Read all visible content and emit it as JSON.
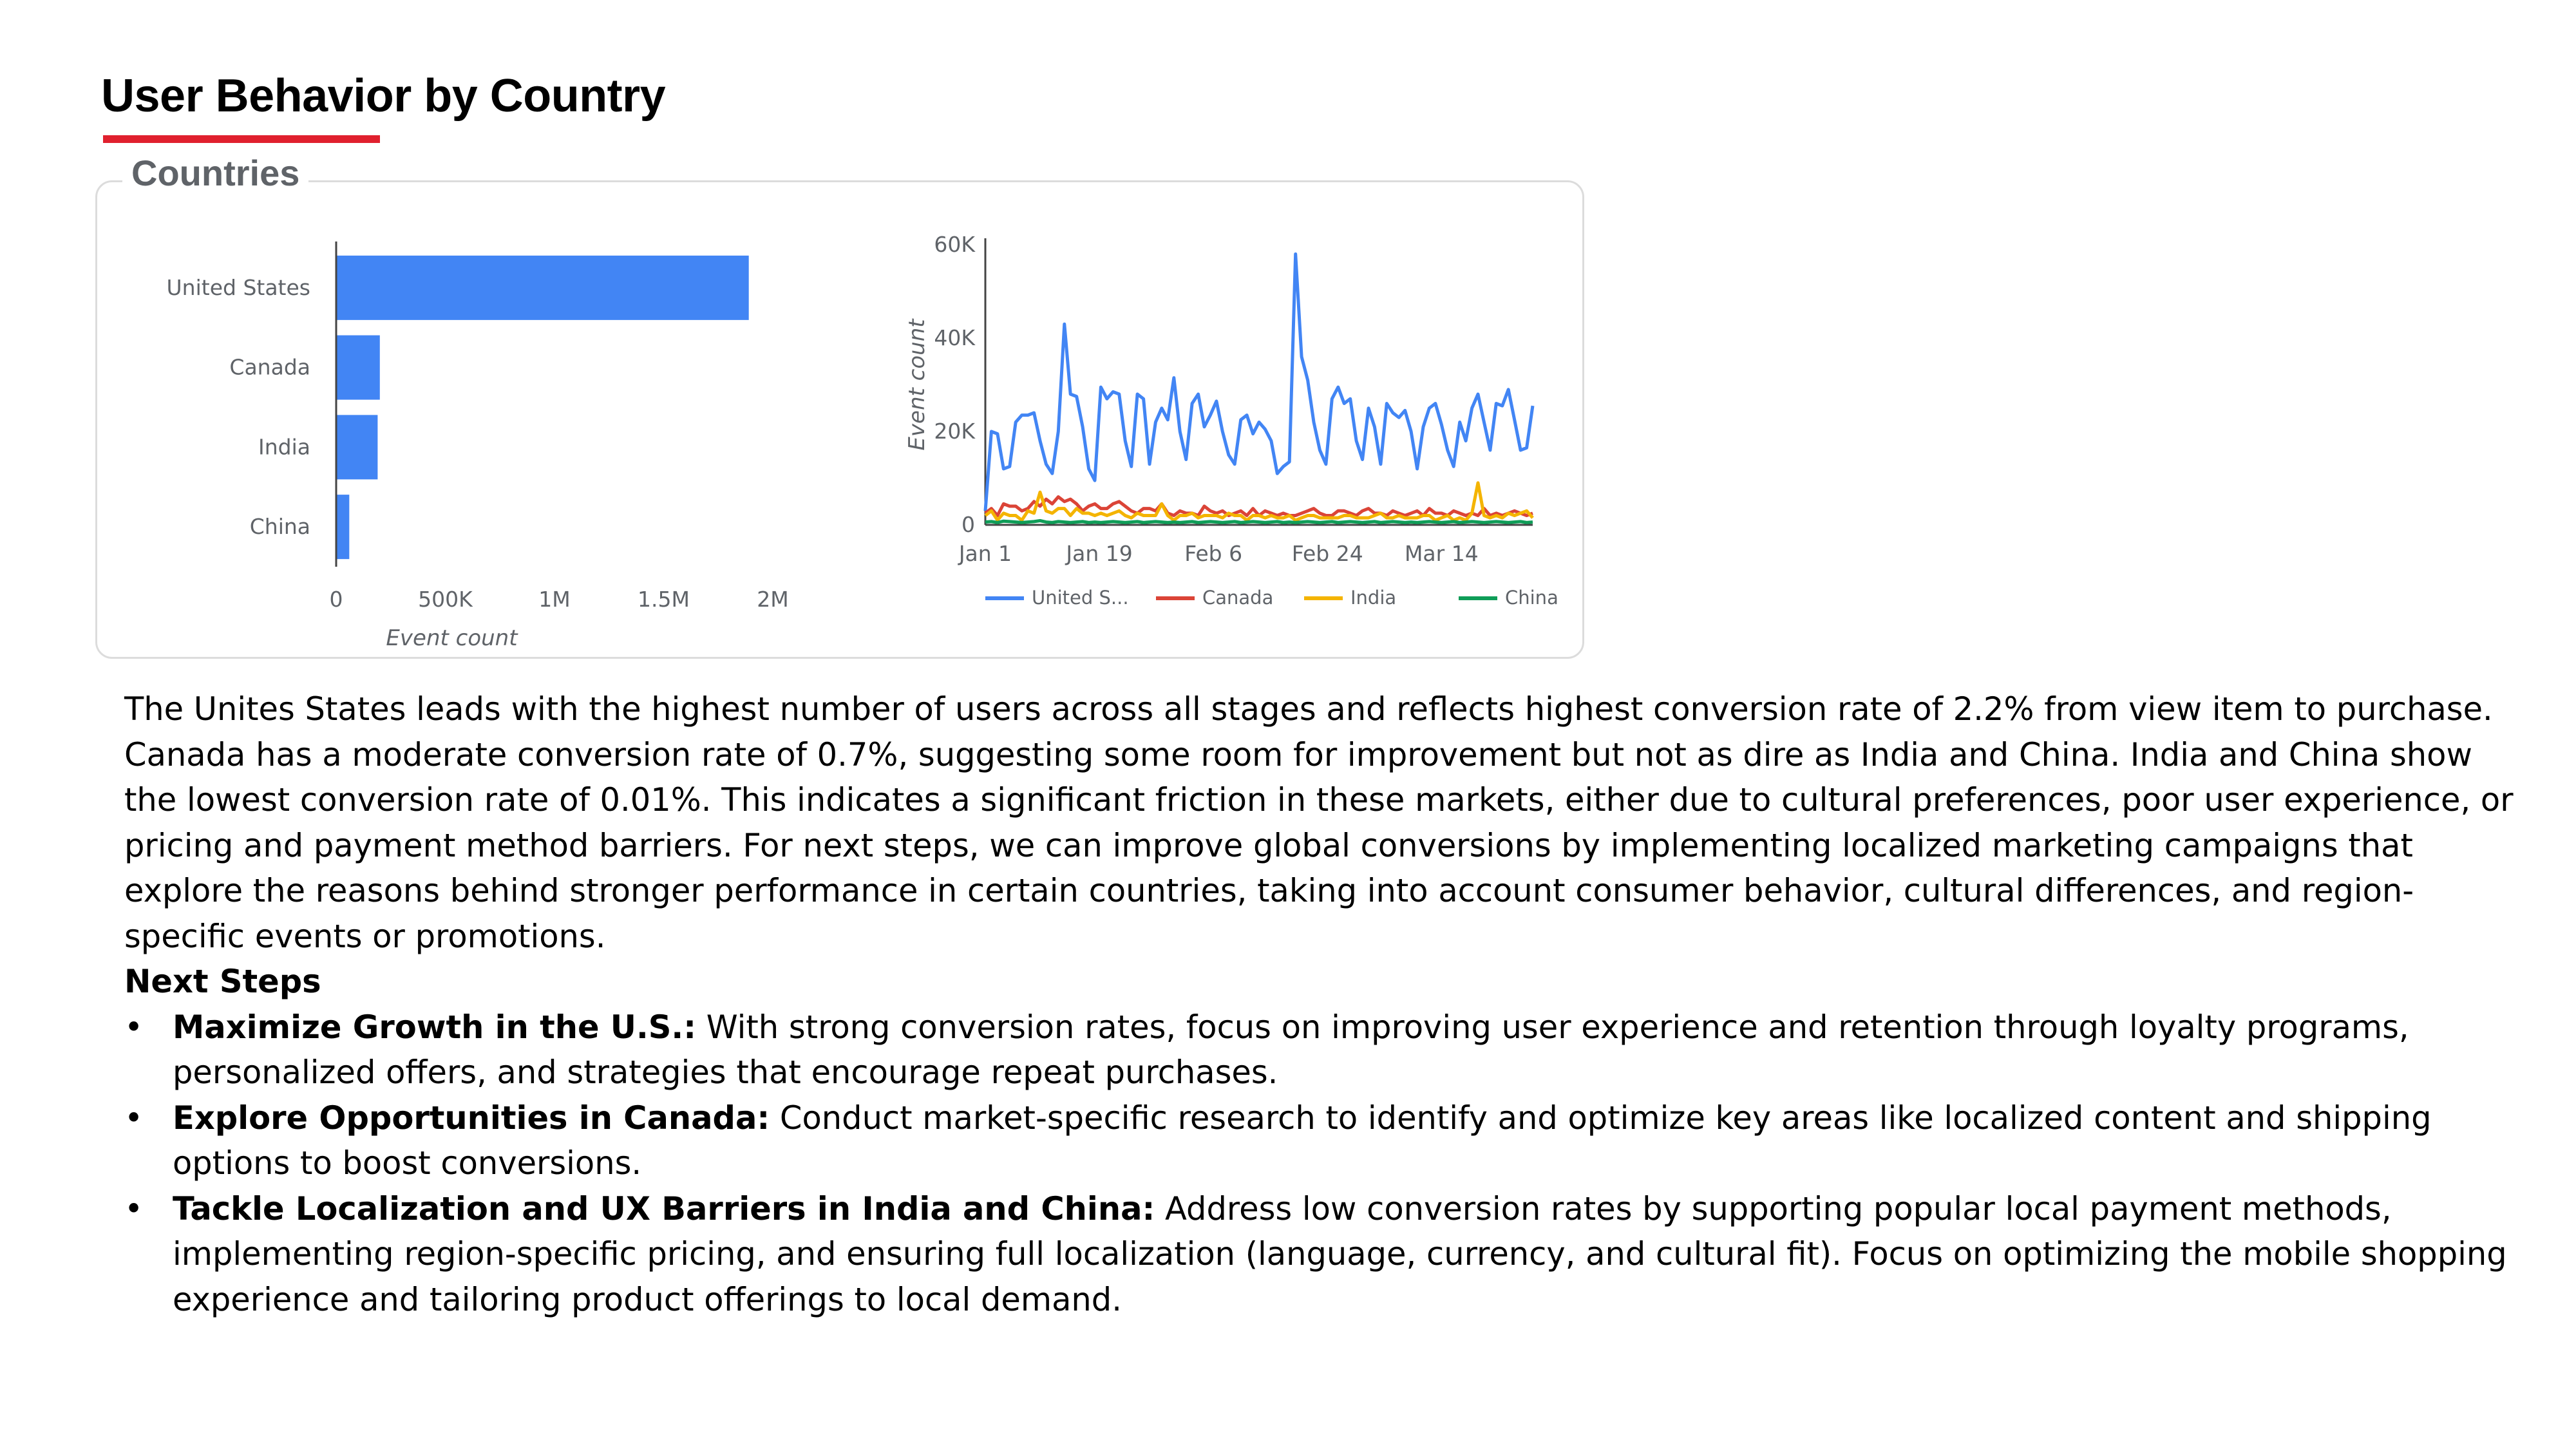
{
  "title": "User Behavior by Country",
  "card_title": "Countries",
  "chart_data": [
    {
      "type": "bar",
      "orientation": "horizontal",
      "categories": [
        "United States",
        "Canada",
        "India",
        "China"
      ],
      "values": [
        1890000,
        200000,
        190000,
        60000
      ],
      "xlabel": "Event count",
      "xticks": [
        "0",
        "500K",
        "1M",
        "1.5M",
        "2M"
      ],
      "xlim": [
        0,
        2000000
      ],
      "color": "#4285f4"
    },
    {
      "type": "line",
      "ylabel": "Event count",
      "yticks": [
        "0",
        "20K",
        "40K",
        "60K"
      ],
      "ylim": [
        0,
        60000
      ],
      "xticks": [
        "Jan 1",
        "Jan 19",
        "Feb 6",
        "Feb 24",
        "Mar 14"
      ],
      "series": [
        {
          "name": "United S...",
          "color": "#4285f4",
          "values": [
            3000,
            20000,
            19500,
            12000,
            12500,
            22000,
            23500,
            23500,
            24000,
            18000,
            13000,
            11000,
            20000,
            43000,
            28000,
            27500,
            21000,
            12000,
            9500,
            29500,
            27000,
            28500,
            28000,
            18000,
            12500,
            28000,
            27000,
            13000,
            22000,
            25000,
            22500,
            31500,
            20000,
            14000,
            26000,
            28000,
            21000,
            23500,
            26500,
            20000,
            15000,
            13000,
            22500,
            23500,
            19500,
            22000,
            20500,
            18000,
            11000,
            12500,
            13500,
            58000,
            36000,
            31000,
            22000,
            16000,
            13000,
            27000,
            29500,
            26000,
            27000,
            18000,
            14000,
            25000,
            21000,
            13000,
            26000,
            24000,
            23000,
            24500,
            20000,
            12000,
            21000,
            25000,
            26000,
            21500,
            16000,
            12500,
            22000,
            18000,
            25000,
            28000,
            22000,
            16000,
            26000,
            25500,
            29000,
            22500,
            16000,
            16500,
            25500
          ]
        },
        {
          "name": "Canada",
          "color": "#db4437",
          "values": [
            2500,
            3500,
            2000,
            4500,
            4000,
            4000,
            3000,
            3500,
            5000,
            4000,
            5500,
            4500,
            6000,
            5000,
            5500,
            4500,
            3000,
            4000,
            4500,
            3500,
            3500,
            4500,
            5000,
            4000,
            3000,
            2500,
            3500,
            3500,
            3000,
            4500,
            2500,
            2000,
            3000,
            2500,
            2500,
            2000,
            4000,
            3000,
            2500,
            3000,
            2000,
            2500,
            3000,
            2000,
            3500,
            2000,
            3000,
            2500,
            2000,
            2500,
            2000,
            2000,
            2500,
            3000,
            3500,
            2500,
            2000,
            2000,
            3000,
            3000,
            2500,
            2000,
            3000,
            3500,
            2500,
            2500,
            2000,
            3000,
            2500,
            2000,
            2500,
            3000,
            2000,
            3500,
            2500,
            2500,
            2000,
            3000,
            2500,
            2000,
            2500,
            2000,
            3500,
            2000,
            2500,
            2000,
            2500,
            3000,
            2500,
            2000,
            2500
          ]
        },
        {
          "name": "India",
          "color": "#f4b400",
          "values": [
            2000,
            3000,
            1000,
            2500,
            2000,
            2000,
            1000,
            3000,
            2500,
            7000,
            3000,
            2500,
            3500,
            3500,
            2000,
            3500,
            2500,
            2500,
            2000,
            2500,
            2000,
            2500,
            3000,
            2000,
            1500,
            2500,
            2000,
            2000,
            2000,
            4500,
            2000,
            1000,
            2000,
            2000,
            2500,
            1500,
            2000,
            2000,
            2000,
            1500,
            2500,
            2000,
            2000,
            1000,
            2000,
            2000,
            1500,
            2000,
            1500,
            1500,
            2000,
            1000,
            1500,
            2000,
            2000,
            1500,
            1500,
            1500,
            1500,
            2000,
            2000,
            1500,
            1500,
            1500,
            2000,
            2500,
            1500,
            1500,
            2000,
            1500,
            1500,
            1500,
            2000,
            2000,
            1000,
            1500,
            2000,
            1000,
            1500,
            1000,
            2500,
            9000,
            2000,
            1500,
            2000,
            1500,
            2500,
            2000,
            2500,
            3000,
            1500
          ]
        },
        {
          "name": "China",
          "color": "#0f9d58",
          "values": [
            600,
            700,
            500,
            800,
            700,
            600,
            500,
            600,
            700,
            900,
            600,
            500,
            700,
            600,
            500,
            600,
            700,
            500,
            600,
            500,
            600,
            700,
            600,
            500,
            600,
            700,
            500,
            600,
            700,
            600,
            500,
            600,
            500,
            600,
            700,
            500,
            600,
            700,
            600,
            500,
            600,
            700,
            500,
            600,
            700,
            600,
            500,
            600,
            700,
            500,
            600,
            500,
            600,
            700,
            600,
            500,
            600,
            700,
            500,
            600,
            700,
            600,
            500,
            600,
            700,
            500,
            600,
            700,
            600,
            500,
            600,
            500,
            600,
            700,
            600,
            500,
            600,
            700,
            500,
            600,
            700,
            600,
            500,
            600,
            700,
            600,
            500,
            600,
            700,
            500,
            600
          ]
        }
      ]
    }
  ],
  "paragraph": "The Unites States leads with the highest number of users across all stages and reflects highest conversion rate of 2.2% from view item to purchase. Canada has a moderate conversion rate of 0.7%, suggesting some room for improvement but not as dire as India and China. India and China show the lowest conversion rate of 0.01%. This indicates a significant friction in these markets, either due to cultural preferences, poor user experience, or pricing and payment method barriers. For next steps, we can improve global conversions by implementing localized marketing campaigns that explore the reasons behind stronger performance in certain countries, taking into account consumer behavior, cultural differences, and region-specific events or promotions.",
  "next_steps_title": "Next Steps",
  "bullets": [
    {
      "marker": "•",
      "bold": "Maximize Growth in the U.S.:",
      "text": " With strong conversion rates, focus on improving user experience and retention through loyalty programs, personalized offers, and strategies that encourage repeat purchases."
    },
    {
      "marker": "•",
      "bold": "Explore Opportunities in Canada:",
      "text": " Conduct market-specific research to identify and optimize key areas like localized content and shipping options to boost conversions."
    },
    {
      "marker": "•",
      "bold": "Tackle Localization and UX Barriers in India and China:",
      "text": " Address low conversion rates by supporting popular local payment methods, implementing region-specific pricing, and ensuring full localization (language, currency, and cultural fit). Focus on optimizing the mobile shopping experience and tailoring product offerings to local demand."
    }
  ]
}
